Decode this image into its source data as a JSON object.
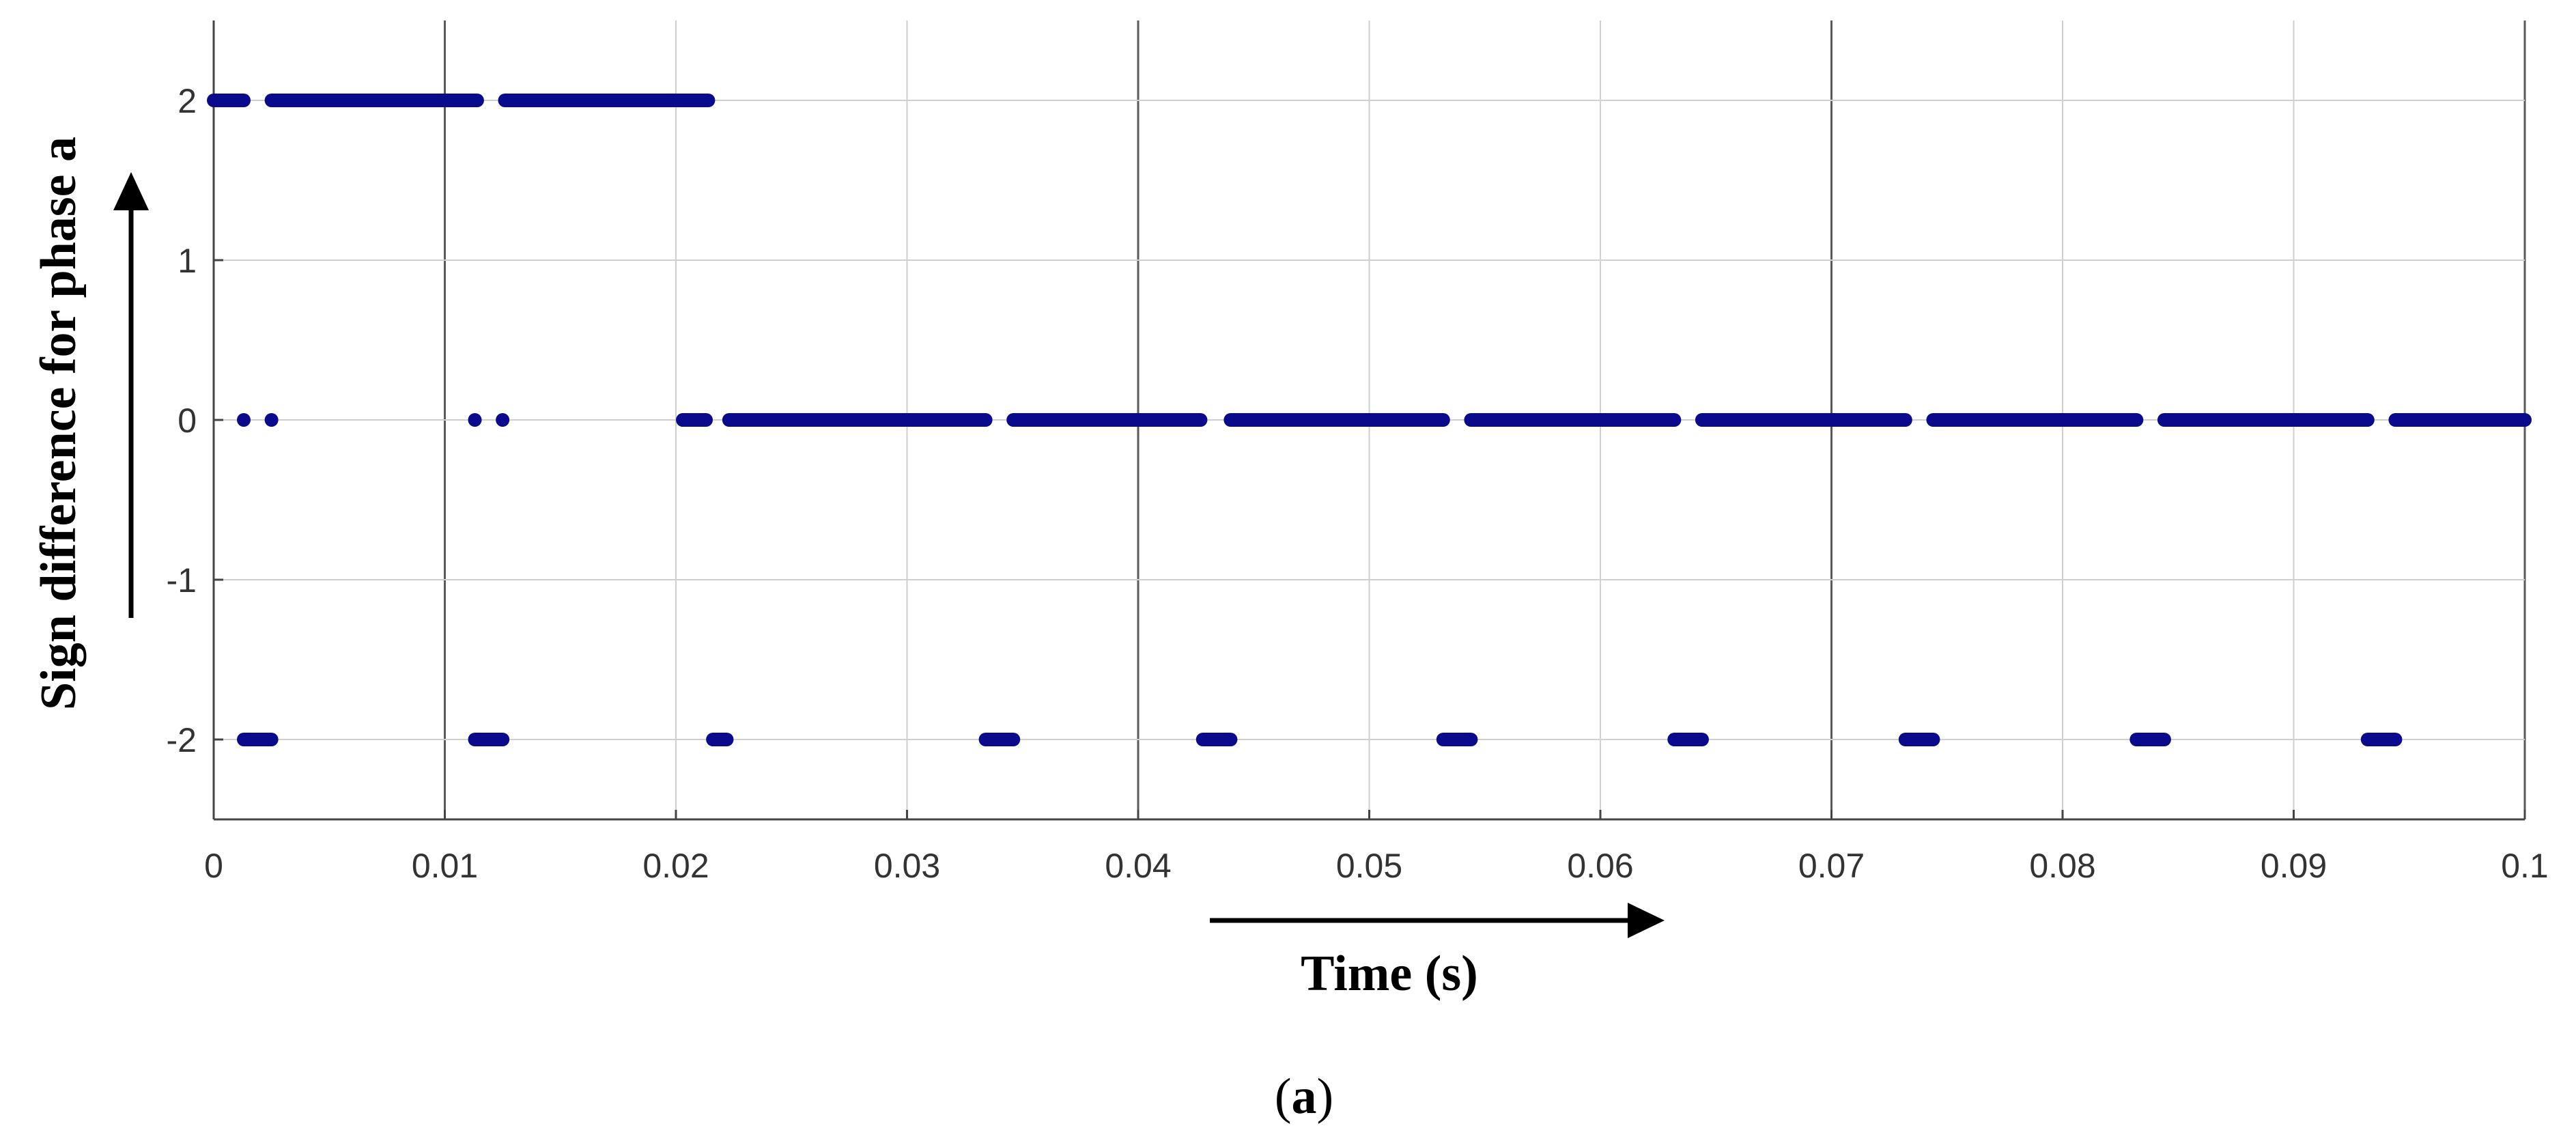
{
  "chart_data": {
    "type": "scatter",
    "title": "",
    "xlabel": "Time (s)",
    "ylabel": "Sign difference for phase a",
    "panel_label_prefix": "(",
    "panel_label": "a",
    "panel_label_suffix": ")",
    "xlim": [
      0,
      0.1
    ],
    "ylim": [
      -2.5,
      2.5
    ],
    "x_ticks": [
      0,
      0.01,
      0.02,
      0.03,
      0.04,
      0.05,
      0.06,
      0.07,
      0.08,
      0.09,
      0.1
    ],
    "x_tick_labels": [
      "0",
      "0.01",
      "0.02",
      "0.03",
      "0.04",
      "0.05",
      "0.06",
      "0.07",
      "0.08",
      "0.09",
      "0.1"
    ],
    "y_ticks": [
      2,
      1,
      0,
      -1,
      -2
    ],
    "y_tick_labels": [
      "2",
      "1",
      "0",
      "-1",
      "-2"
    ],
    "grid": true,
    "marker_color": "#0a0a8c",
    "series": [
      {
        "value": 2,
        "segments": [
          [
            0.0,
            0.0013
          ],
          [
            0.0025,
            0.0114
          ],
          [
            0.0126,
            0.0214
          ]
        ],
        "points": []
      },
      {
        "value": 0,
        "segments": [
          [
            0.0203,
            0.0213
          ],
          [
            0.0223,
            0.0334
          ],
          [
            0.0346,
            0.0427
          ],
          [
            0.044,
            0.0532
          ],
          [
            0.0544,
            0.0632
          ],
          [
            0.0644,
            0.0732
          ],
          [
            0.0744,
            0.0832
          ],
          [
            0.0844,
            0.0932
          ],
          [
            0.0944,
            0.1
          ]
        ],
        "points": [
          0.0013,
          0.0025,
          0.0113,
          0.0125,
          0.0203
        ]
      },
      {
        "value": -2,
        "segments": [
          [
            0.0013,
            0.0025
          ],
          [
            0.0113,
            0.0125
          ],
          [
            0.0216,
            0.0222
          ],
          [
            0.0334,
            0.0346
          ],
          [
            0.0428,
            0.044
          ],
          [
            0.0532,
            0.0544
          ],
          [
            0.0632,
            0.0644
          ],
          [
            0.0732,
            0.0744
          ],
          [
            0.0832,
            0.0844
          ],
          [
            0.0932,
            0.0944
          ]
        ],
        "points": []
      }
    ]
  }
}
